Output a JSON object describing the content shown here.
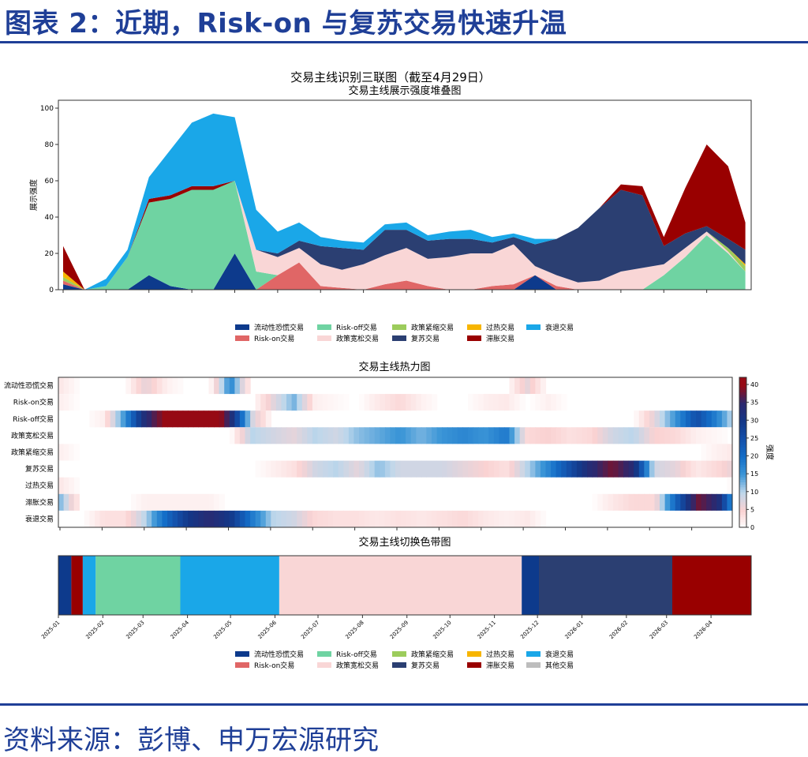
{
  "header": {
    "title": "图表 2：近期，Risk-on 与复苏交易快速升温"
  },
  "footer": {
    "source": "资料来源：彭博、申万宏源研究"
  },
  "chart_data": [
    {
      "type": "area",
      "suptitle": "交易主线识别三联图（截至4月29日）",
      "title": "交易主线展示强度堆叠图",
      "xlabel": "",
      "ylabel": "展示强度",
      "ylim": [
        0,
        100
      ],
      "yticks": [
        0,
        20,
        40,
        60,
        80,
        100
      ],
      "x_range": [
        "2025-01",
        "2026-04-29"
      ],
      "month_ticks": [
        "2025-01",
        "2025-02",
        "2025-03",
        "2025-04",
        "2025-05",
        "2025-06",
        "2025-07",
        "2025-08",
        "2025-09",
        "2025-10",
        "2025-11",
        "2025-12",
        "2026-01",
        "2026-02",
        "2026-03",
        "2026-04"
      ],
      "series_points_x_month_index": [
        0,
        0.5,
        1,
        1.5,
        2,
        2.5,
        3,
        3.5,
        4,
        4.5,
        5,
        5.5,
        6,
        6.5,
        7,
        7.5,
        8,
        8.5,
        9,
        9.5,
        10,
        10.5,
        11,
        11.5,
        12,
        12.5,
        13,
        13.5,
        14,
        14.5,
        15,
        15.5,
        15.9
      ],
      "series": [
        {
          "name": "流动性恐慌交易",
          "color": "#0d3a8c",
          "values": [
            3,
            0,
            0,
            0,
            8,
            2,
            0,
            0,
            20,
            0,
            0,
            0,
            0,
            0,
            0,
            0,
            0,
            0,
            0,
            0,
            0,
            0,
            8,
            0,
            0,
            0,
            0,
            0,
            0,
            0,
            0,
            0,
            0
          ]
        },
        {
          "name": "Risk-on交易",
          "color": "#e06666",
          "values": [
            2,
            0,
            0,
            0,
            0,
            0,
            0,
            0,
            0,
            0,
            8,
            15,
            2,
            1,
            0,
            3,
            5,
            2,
            0,
            0,
            2,
            3,
            0,
            2,
            0,
            0,
            0,
            0,
            0,
            0,
            0,
            0,
            0
          ]
        },
        {
          "name": "Risk-off交易",
          "color": "#6fd3a2",
          "values": [
            0,
            0,
            2,
            18,
            40,
            48,
            55,
            55,
            40,
            10,
            0,
            0,
            0,
            0,
            0,
            0,
            0,
            0,
            0,
            0,
            0,
            0,
            0,
            0,
            0,
            0,
            0,
            0,
            8,
            18,
            30,
            20,
            10
          ]
        },
        {
          "name": "政策宽松交易",
          "color": "#f9d6d6",
          "values": [
            0,
            0,
            0,
            0,
            0,
            0,
            0,
            0,
            0,
            12,
            10,
            8,
            12,
            10,
            14,
            16,
            18,
            15,
            18,
            20,
            18,
            22,
            5,
            6,
            4,
            5,
            10,
            12,
            6,
            5,
            2,
            1,
            0
          ]
        },
        {
          "name": "政策紧缩交易",
          "color": "#9ccc5c",
          "values": [
            2,
            0,
            0,
            0,
            0,
            0,
            0,
            0,
            0,
            0,
            0,
            0,
            0,
            0,
            0,
            0,
            0,
            0,
            0,
            0,
            0,
            0,
            0,
            0,
            0,
            0,
            0,
            0,
            0,
            0,
            0,
            2,
            3
          ]
        },
        {
          "name": "过热交易",
          "color": "#f7b500",
          "values": [
            3,
            0,
            0,
            0,
            0,
            0,
            0,
            0,
            0,
            0,
            0,
            0,
            0,
            0,
            0,
            0,
            0,
            0,
            0,
            0,
            0,
            0,
            0,
            0,
            0,
            0,
            0,
            0,
            0,
            0,
            0,
            0,
            1
          ]
        },
        {
          "name": "复苏交易",
          "color": "#2b3f72",
          "values": [
            0,
            0,
            0,
            0,
            0,
            0,
            0,
            0,
            0,
            0,
            2,
            4,
            10,
            12,
            8,
            14,
            10,
            10,
            10,
            8,
            6,
            4,
            12,
            20,
            30,
            40,
            45,
            40,
            10,
            8,
            3,
            5,
            8
          ]
        },
        {
          "name": "滞胀交易",
          "color": "#990000",
          "values": [
            14,
            0,
            0,
            0,
            2,
            2,
            2,
            2,
            0,
            0,
            0,
            0,
            0,
            0,
            0,
            0,
            0,
            0,
            0,
            0,
            0,
            0,
            0,
            0,
            0,
            0,
            3,
            5,
            5,
            25,
            45,
            40,
            15
          ]
        },
        {
          "name": "衰退交易",
          "color": "#1aa7e8",
          "values": [
            0,
            0,
            4,
            4,
            12,
            25,
            35,
            40,
            35,
            22,
            12,
            10,
            5,
            4,
            4,
            3,
            4,
            3,
            4,
            5,
            3,
            2,
            3,
            0,
            0,
            0,
            0,
            0,
            0,
            0,
            0,
            0,
            0
          ]
        }
      ]
    },
    {
      "type": "heatmap",
      "title": "交易主线热力图",
      "colorbar_label": "强度",
      "colorbar_ticks": [
        0,
        5,
        10,
        15,
        20,
        25,
        30,
        35,
        40
      ],
      "rows": [
        "流动性恐慌交易",
        "Risk-on交易",
        "Risk-off交易",
        "政策宽松交易",
        "政策紧缩交易",
        "复苏交易",
        "过热交易",
        "滞胀交易",
        "衰退交易"
      ],
      "x_range": [
        "2025-01",
        "2026-04-29"
      ]
    },
    {
      "type": "bar",
      "title": "交易主线切换色带图",
      "bands": [
        {
          "start": "2025-01-01",
          "end": "2025-01-10",
          "regime": "流动性恐慌交易"
        },
        {
          "start": "2025-01-10",
          "end": "2025-01-18",
          "regime": "滞胀交易"
        },
        {
          "start": "2025-01-18",
          "end": "2025-01-27",
          "regime": "衰退交易"
        },
        {
          "start": "2025-01-27",
          "end": "2025-03-27",
          "regime": "Risk-off交易"
        },
        {
          "start": "2025-03-27",
          "end": "2025-06-04",
          "regime": "衰退交易"
        },
        {
          "start": "2025-06-04",
          "end": "2025-11-20",
          "regime": "政策宽松交易"
        },
        {
          "start": "2025-11-20",
          "end": "2025-12-02",
          "regime": "流动性恐慌交易"
        },
        {
          "start": "2025-12-02",
          "end": "2026-03-05",
          "regime": "复苏交易"
        },
        {
          "start": "2026-03-05",
          "end": "2026-04-29",
          "regime": "滞胀交易"
        }
      ],
      "legend": [
        {
          "name": "流动性恐慌交易",
          "color": "#0d3a8c"
        },
        {
          "name": "Risk-on交易",
          "color": "#e06666"
        },
        {
          "name": "Risk-off交易",
          "color": "#6fd3a2"
        },
        {
          "name": "政策宽松交易",
          "color": "#f9d6d6"
        },
        {
          "name": "政策紧缩交易",
          "color": "#9ccc5c"
        },
        {
          "name": "复苏交易",
          "color": "#2b3f72"
        },
        {
          "name": "过热交易",
          "color": "#f7b500"
        },
        {
          "name": "滞胀交易",
          "color": "#990000"
        },
        {
          "name": "衰退交易",
          "color": "#1aa7e8"
        },
        {
          "name": "其他交易",
          "color": "#bdbdbd"
        }
      ]
    }
  ]
}
